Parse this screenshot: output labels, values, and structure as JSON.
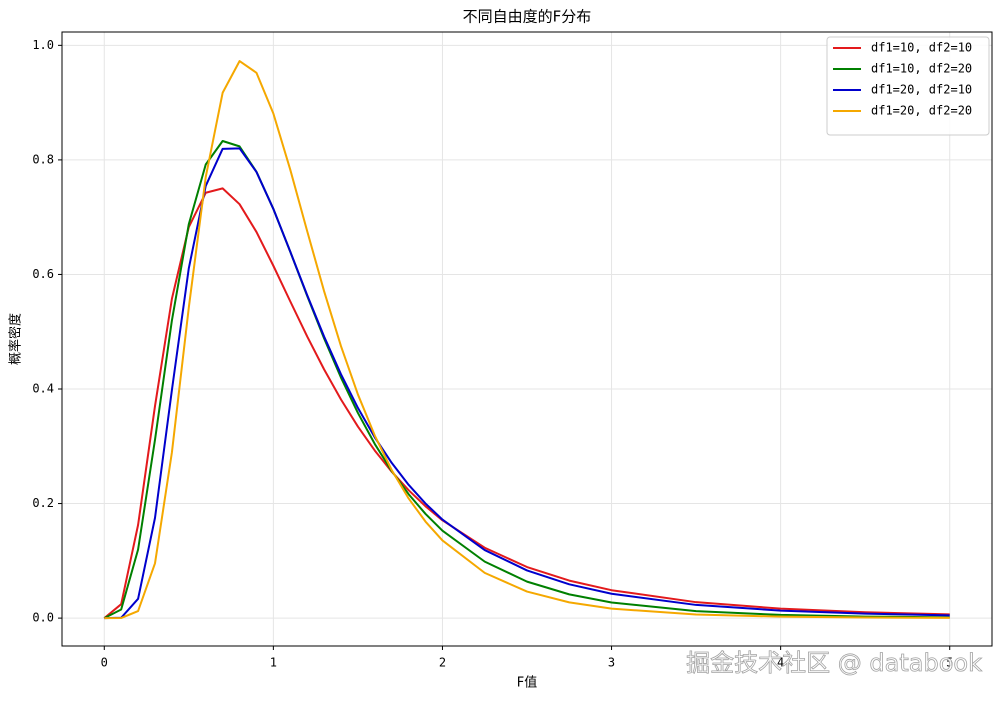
{
  "chart_data": {
    "type": "line",
    "title": "不同自由度的F分布",
    "xlabel": "F值",
    "ylabel": "概率密度",
    "x": [
      0,
      0.1,
      0.2,
      0.3,
      0.4,
      0.5,
      0.6,
      0.7,
      0.8,
      0.9,
      1.0,
      1.1,
      1.2,
      1.3,
      1.4,
      1.5,
      1.6,
      1.7,
      1.8,
      1.9,
      2.0,
      2.25,
      2.5,
      2.75,
      3.0,
      3.5,
      4.0,
      4.5,
      5.0
    ],
    "series": [
      {
        "name": "df1=10, df2=10",
        "color": "#e31a1c",
        "values": [
          0,
          0.0243,
          0.1628,
          0.3702,
          0.5576,
          0.6828,
          0.7426,
          0.7503,
          0.7227,
          0.6742,
          0.6152,
          0.553,
          0.4918,
          0.4343,
          0.3817,
          0.3344,
          0.2925,
          0.2556,
          0.2233,
          0.1952,
          0.1707,
          0.1228,
          0.0892,
          0.0655,
          0.0487,
          0.0278,
          0.0165,
          0.0102,
          0.0065
        ]
      },
      {
        "name": "df1=10, df2=20",
        "color": "#008000",
        "values": [
          0,
          0.015,
          0.1198,
          0.3114,
          0.5198,
          0.6879,
          0.792,
          0.833,
          0.8236,
          0.7793,
          0.7144,
          0.6396,
          0.5626,
          0.4884,
          0.4198,
          0.3582,
          0.3039,
          0.2567,
          0.2163,
          0.1819,
          0.1527,
          0.0986,
          0.0637,
          0.0414,
          0.0272,
          0.0121,
          0.00558,
          0.00269,
          0.00135
        ]
      },
      {
        "name": "df1=20, df2=10",
        "color": "#0000cc",
        "values": [
          0,
          0.00066,
          0.0337,
          0.175,
          0.3983,
          0.611,
          0.7546,
          0.8193,
          0.8202,
          0.779,
          0.7144,
          0.6398,
          0.5639,
          0.4917,
          0.4257,
          0.367,
          0.3155,
          0.271,
          0.2327,
          0.2,
          0.172,
          0.1188,
          0.0832,
          0.059,
          0.0425,
          0.023,
          0.0131,
          0.00776,
          0.00479
        ]
      },
      {
        "name": "df1=20, df2=20",
        "color": "#f5a800",
        "values": [
          0,
          0.00014,
          0.01234,
          0.0957,
          0.2894,
          0.5426,
          0.77,
          0.9172,
          0.9725,
          0.9521,
          0.881,
          0.7829,
          0.6757,
          0.5708,
          0.4748,
          0.3905,
          0.3185,
          0.2584,
          0.2089,
          0.1684,
          0.1356,
          0.079,
          0.0463,
          0.0275,
          0.01654,
          0.00628,
          0.00254,
          0.00109,
          0.00049
        ]
      }
    ],
    "xlim": [
      -0.25,
      5.25
    ],
    "ylim": [
      -0.0487,
      1.0233
    ],
    "xticks": [
      0,
      1,
      2,
      3,
      4,
      5
    ],
    "yticks": [
      {
        "value": 0,
        "label": "0.0"
      },
      0.2,
      0.4,
      0.6,
      0.8,
      {
        "value": 1,
        "label": "1.0"
      }
    ],
    "grid": true,
    "legend": "upper-right",
    "watermark": "掘金技术社区 @ databook"
  }
}
